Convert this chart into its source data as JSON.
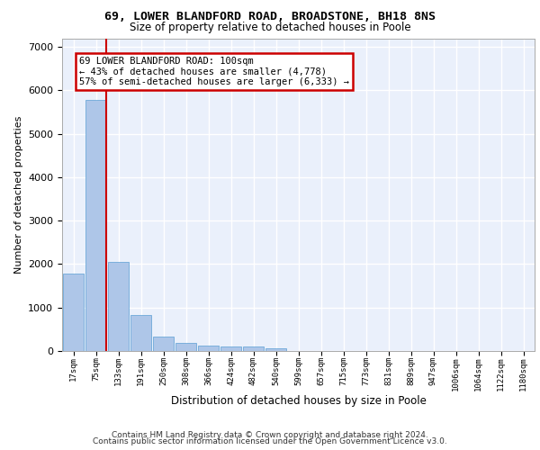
{
  "title": "69, LOWER BLANDFORD ROAD, BROADSTONE, BH18 8NS",
  "subtitle": "Size of property relative to detached houses in Poole",
  "xlabel": "Distribution of detached houses by size in Poole",
  "ylabel": "Number of detached properties",
  "bar_labels": [
    "17sqm",
    "75sqm",
    "133sqm",
    "191sqm",
    "250sqm",
    "308sqm",
    "366sqm",
    "424sqm",
    "482sqm",
    "540sqm",
    "599sqm",
    "657sqm",
    "715sqm",
    "773sqm",
    "831sqm",
    "889sqm",
    "947sqm",
    "1006sqm",
    "1064sqm",
    "1122sqm",
    "1180sqm"
  ],
  "bar_values": [
    1780,
    5780,
    2060,
    820,
    340,
    185,
    115,
    110,
    100,
    70,
    0,
    0,
    0,
    0,
    0,
    0,
    0,
    0,
    0,
    0,
    0
  ],
  "bar_color": "#aec6e8",
  "bar_edge_color": "#5a9fd4",
  "annotation_line1": "69 LOWER BLANDFORD ROAD: 100sqm",
  "annotation_line2": "← 43% of detached houses are smaller (4,778)",
  "annotation_line3": "57% of semi-detached houses are larger (6,333) →",
  "ylim": [
    0,
    7200
  ],
  "yticks": [
    0,
    1000,
    2000,
    3000,
    4000,
    5000,
    6000,
    7000
  ],
  "footer_line1": "Contains HM Land Registry data © Crown copyright and database right 2024.",
  "footer_line2": "Contains public sector information licensed under the Open Government Licence v3.0.",
  "background_color": "#eaf0fb",
  "grid_color": "#ffffff",
  "red_color": "#cc0000"
}
